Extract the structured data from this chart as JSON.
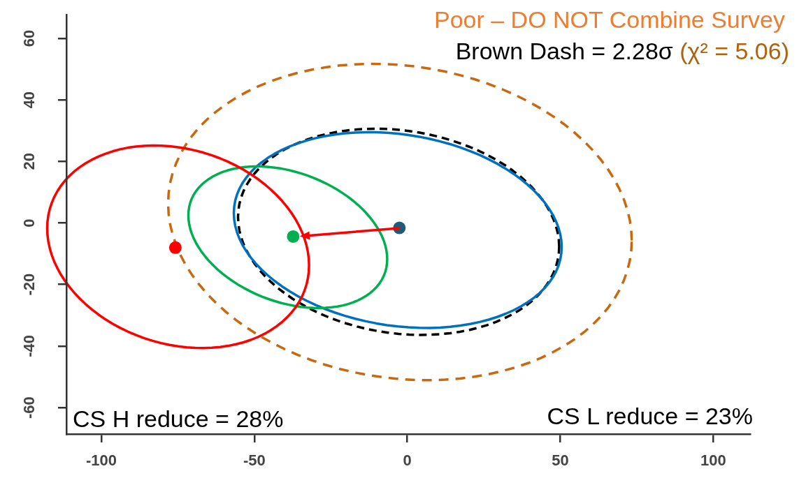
{
  "chart_data": {
    "type": "scatter",
    "annotations": [
      "Poor – DO NOT Combine Survey",
      "Brown Dash = 2.28σ",
      "(χ² = 5.06)",
      "CS H reduce = 28%",
      "CS L reduce = 23%"
    ],
    "xlim": [
      -111.4,
      112
    ],
    "xticks": [
      -100,
      -50,
      0,
      50,
      100
    ],
    "ylim": [
      -68.6,
      67.7
    ],
    "yticks": [
      -60,
      -40,
      -20,
      0,
      20,
      40,
      60
    ],
    "grid": false,
    "legend": false,
    "marker": "circle",
    "series": [
      {
        "x": [
          -75.8,
          -37.3,
          -2.6
        ],
        "values": [
          -8.0,
          -4.4,
          -1.6
        ],
        "colors": [
          "#ff0000",
          "#00b050",
          "#1f5c7a"
        ]
      }
    ]
  }
}
